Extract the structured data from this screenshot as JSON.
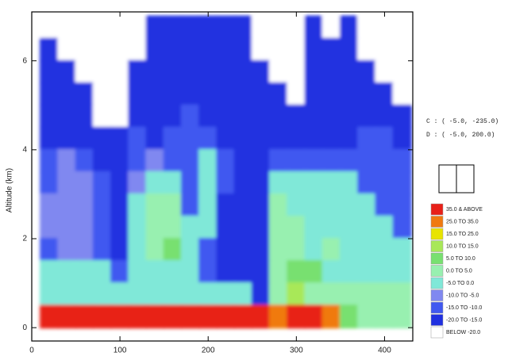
{
  "chart_data": {
    "type": "heatmap",
    "y_label": "Altitude (km)",
    "annotations": [
      "C : (   -5.0, -235.0)",
      "D : (   -5.0,  200.0)"
    ],
    "xlim": [
      0,
      432
    ],
    "xticks": [
      0,
      100,
      200,
      300,
      400
    ],
    "ylim": [
      -0.3,
      7.1
    ],
    "yticks": [
      0,
      2,
      4,
      6
    ],
    "x": [
      20,
      40,
      60,
      80,
      100,
      120,
      140,
      160,
      180,
      200,
      220,
      240,
      260,
      280,
      300,
      320,
      340,
      360,
      380,
      400,
      420
    ],
    "y": [
      6.75,
      6.25,
      5.75,
      5.25,
      4.75,
      4.25,
      3.75,
      3.25,
      2.75,
      2.25,
      1.75,
      1.25,
      0.75,
      0.25
    ],
    "z": [
      [
        -25,
        -25,
        -25,
        -25,
        -25,
        -25,
        -17,
        -17,
        -17,
        -17,
        -17,
        -17,
        -25,
        -25,
        -25,
        -17,
        -25,
        -17,
        -25,
        -25,
        -25
      ],
      [
        -17,
        -25,
        -25,
        -25,
        -25,
        -25,
        -17,
        -17,
        -17,
        -17,
        -17,
        -17,
        -25,
        -25,
        -25,
        -17,
        -17,
        -17,
        -25,
        -25,
        -25
      ],
      [
        -17,
        -17,
        -25,
        -25,
        -25,
        -17,
        -17,
        -17,
        -17,
        -17,
        -17,
        -17,
        -17,
        -25,
        -25,
        -17,
        -17,
        -17,
        -17,
        -25,
        -25
      ],
      [
        -17,
        -17,
        -17,
        -25,
        -25,
        -17,
        -17,
        -17,
        -17,
        -17,
        -17,
        -17,
        -17,
        -17,
        -25,
        -17,
        -17,
        -17,
        -17,
        -17,
        -25
      ],
      [
        -17,
        -17,
        -17,
        -25,
        -25,
        -17,
        -17,
        -17,
        -12,
        -17,
        -17,
        -17,
        -17,
        -17,
        -17,
        -17,
        -17,
        -17,
        -17,
        -17,
        -17
      ],
      [
        -17,
        -17,
        -17,
        -17,
        -17,
        -12,
        -17,
        -12,
        -12,
        -12,
        -17,
        -17,
        -17,
        -17,
        -17,
        -17,
        -17,
        -17,
        -12,
        -12,
        -17
      ],
      [
        -12,
        -7,
        -12,
        -17,
        -17,
        -12,
        -7,
        -12,
        -12,
        -2,
        -12,
        -17,
        -17,
        -12,
        -12,
        -12,
        -12,
        -12,
        -12,
        -12,
        -12
      ],
      [
        -12,
        -7,
        -7,
        -12,
        -17,
        -7,
        -2,
        -2,
        -12,
        -2,
        -12,
        -17,
        -17,
        -2,
        -2,
        -2,
        -2,
        -2,
        -12,
        -12,
        -12
      ],
      [
        -7,
        -7,
        -7,
        -12,
        -17,
        -2,
        2,
        2,
        -12,
        -2,
        -17,
        -17,
        -17,
        2,
        -2,
        -2,
        -2,
        -2,
        -2,
        -12,
        -12
      ],
      [
        -7,
        -7,
        -7,
        -12,
        -17,
        -2,
        2,
        2,
        -2,
        -2,
        -17,
        -17,
        -17,
        2,
        2,
        -2,
        -2,
        -2,
        -2,
        -2,
        -12
      ],
      [
        -12,
        -7,
        -7,
        -12,
        -17,
        -2,
        2,
        7,
        -2,
        -12,
        -17,
        -17,
        -17,
        2,
        2,
        -2,
        2,
        -2,
        -2,
        -2,
        -2
      ],
      [
        -2,
        -2,
        -2,
        -2,
        -12,
        -2,
        -2,
        -2,
        -2,
        -12,
        -17,
        -17,
        -17,
        2,
        7,
        7,
        -2,
        -2,
        -2,
        -2,
        -2
      ],
      [
        -2,
        -2,
        -2,
        -2,
        -2,
        -2,
        -2,
        -2,
        -2,
        -2,
        -2,
        -2,
        -17,
        2,
        12,
        2,
        2,
        2,
        2,
        2,
        2
      ],
      [
        40,
        40,
        40,
        40,
        40,
        40,
        40,
        40,
        40,
        40,
        40,
        40,
        40,
        30,
        40,
        40,
        30,
        7,
        2,
        2,
        2
      ]
    ],
    "legend": [
      {
        "label": "35.0 & ABOVE",
        "min": 35,
        "color": "#e82018"
      },
      {
        "label": "25.0  TO  35.0",
        "min": 25,
        "color": "#f07a10"
      },
      {
        "label": "15.0  TO  25.0",
        "min": 15,
        "color": "#e8e400"
      },
      {
        "label": "10.0  TO  15.0",
        "min": 10,
        "color": "#a8e858"
      },
      {
        "label": "5.0  TO  10.0",
        "min": 5,
        "color": "#78e070"
      },
      {
        "label": "0.0  TO   5.0",
        "min": 0,
        "color": "#98f0b0"
      },
      {
        "label": "-5.0  TO   0.0",
        "min": -5,
        "color": "#80e8d8"
      },
      {
        "label": "-10.0  TO  -5.0",
        "min": -10,
        "color": "#8088f0"
      },
      {
        "label": "-15.0  TO -10.0",
        "min": -15,
        "color": "#4058f0"
      },
      {
        "label": "-20.0  TO -15.0",
        "min": -20,
        "color": "#2030e0"
      },
      {
        "label": "BELOW -20.0",
        "min": null,
        "color": "#ffffff"
      }
    ]
  }
}
